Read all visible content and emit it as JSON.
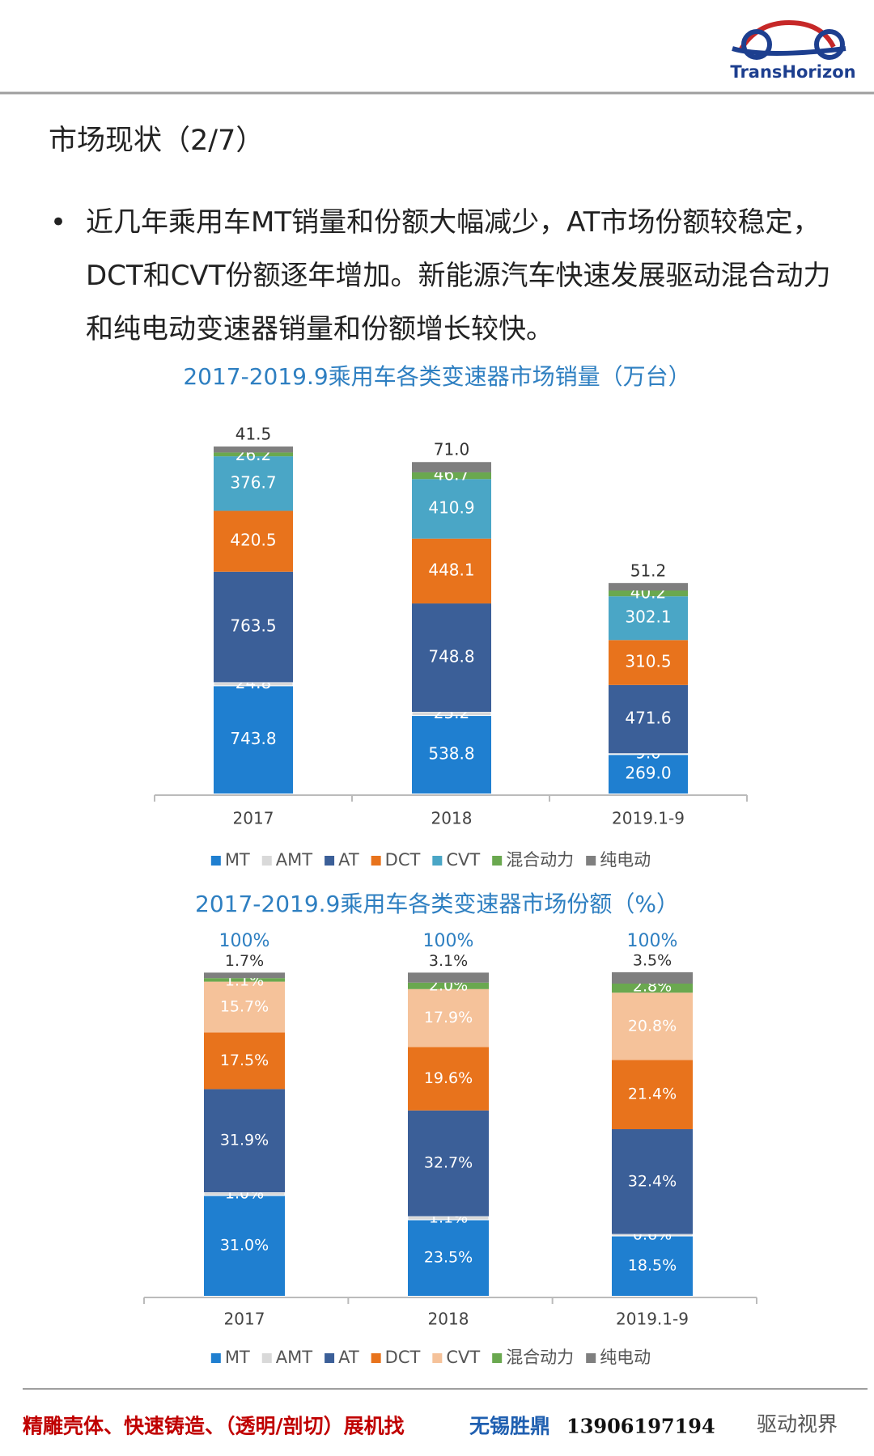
{
  "logo": "TransHorizon",
  "heading": "市场现状（2/7）",
  "bullet": "近几年乘用车MT销量和份额大幅减少，AT市场份额较稳定，DCT和CVT份额逐年增加。新能源汽车快速发展驱动混合动力和纯电动变速器销量和份额增长较快。",
  "chart_data": [
    {
      "type": "bar",
      "stacked": true,
      "title": "2017-2019.9乘用车各类变速器市场销量（万台）",
      "categories": [
        "2017",
        "2018",
        "2019.1-9"
      ],
      "series": [
        {
          "name": "MT",
          "color": "#1f7fd0",
          "values": [
            743.8,
            538.8,
            269
          ],
          "value_labels": [
            "743.8",
            "538.8",
            "269.0"
          ]
        },
        {
          "name": "AMT",
          "color": "#d9d9d9",
          "values": [
            24.8,
            25.2,
            9
          ],
          "value_labels": [
            "24.8",
            "25.2",
            "9.0"
          ]
        },
        {
          "name": "AT",
          "color": "#3b5f98",
          "values": [
            763.5,
            748.8,
            471.6
          ],
          "value_labels": [
            "763.5",
            "748.8",
            "471.6"
          ]
        },
        {
          "name": "DCT",
          "color": "#e8731c",
          "values": [
            420.5,
            448.1,
            310.5
          ],
          "value_labels": [
            "420.5",
            "448.1",
            "310.5"
          ]
        },
        {
          "name": "CVT",
          "color": "#4aa6c6",
          "values": [
            376.7,
            410.9,
            302.1
          ],
          "value_labels": [
            "376.7",
            "410.9",
            "302.1"
          ]
        },
        {
          "name": "混合动力",
          "color": "#6aa84f",
          "values": [
            26.2,
            46.7,
            40.2
          ],
          "value_labels": [
            "26.2",
            "46.7",
            "40.2"
          ]
        },
        {
          "name": "纯电动",
          "color": "#7f7f7f",
          "values": [
            41.5,
            71,
            51.2
          ],
          "value_labels": [
            "41.5",
            "71.0",
            "51.2"
          ]
        }
      ]
    },
    {
      "type": "bar",
      "stacked": true,
      "title": "2017-2019.9乘用车各类变速器市场份额（%）",
      "categories": [
        "2017",
        "2018",
        "2019.1-9"
      ],
      "totals": [
        100,
        100,
        100
      ],
      "total_labels": [
        "100%",
        "100%",
        "100%"
      ],
      "series": [
        {
          "name": "MT",
          "color": "#1f7fd0",
          "values": [
            31,
            23.5,
            18.5
          ],
          "value_labels": [
            "31.0%",
            "23.5%",
            "18.5%"
          ]
        },
        {
          "name": "AMT",
          "color": "#d9d9d9",
          "values": [
            1,
            1.1,
            0.6
          ],
          "value_labels": [
            "1.0%",
            "1.1%",
            "0.6%"
          ]
        },
        {
          "name": "AT",
          "color": "#3b5f98",
          "values": [
            31.9,
            32.7,
            32.4
          ],
          "value_labels": [
            "31.9%",
            "32.7%",
            "32.4%"
          ]
        },
        {
          "name": "DCT",
          "color": "#e8731c",
          "values": [
            17.5,
            19.6,
            21.4
          ],
          "value_labels": [
            "17.5%",
            "19.6%",
            "21.4%"
          ]
        },
        {
          "name": "CVT",
          "color": "#f5c29a",
          "values": [
            15.7,
            17.9,
            20.8
          ],
          "value_labels": [
            "15.7%",
            "17.9%",
            "20.8%"
          ]
        },
        {
          "name": "混合动力",
          "color": "#6aa84f",
          "values": [
            1.1,
            2,
            2.8
          ],
          "value_labels": [
            "1.1%",
            "2.0%",
            "2.8%"
          ]
        },
        {
          "name": "纯电动",
          "color": "#7f7f7f",
          "values": [
            1.7,
            3.1,
            3.5
          ],
          "value_labels": [
            "1.7%",
            "3.1%",
            "3.5%"
          ]
        }
      ]
    }
  ],
  "footer": {
    "ad": "精雕壳体、快速铸造、（透明/剖切）展机找",
    "company": "无锡胜鼎",
    "phone": "13906197194",
    "watermark": "驱动视界"
  }
}
